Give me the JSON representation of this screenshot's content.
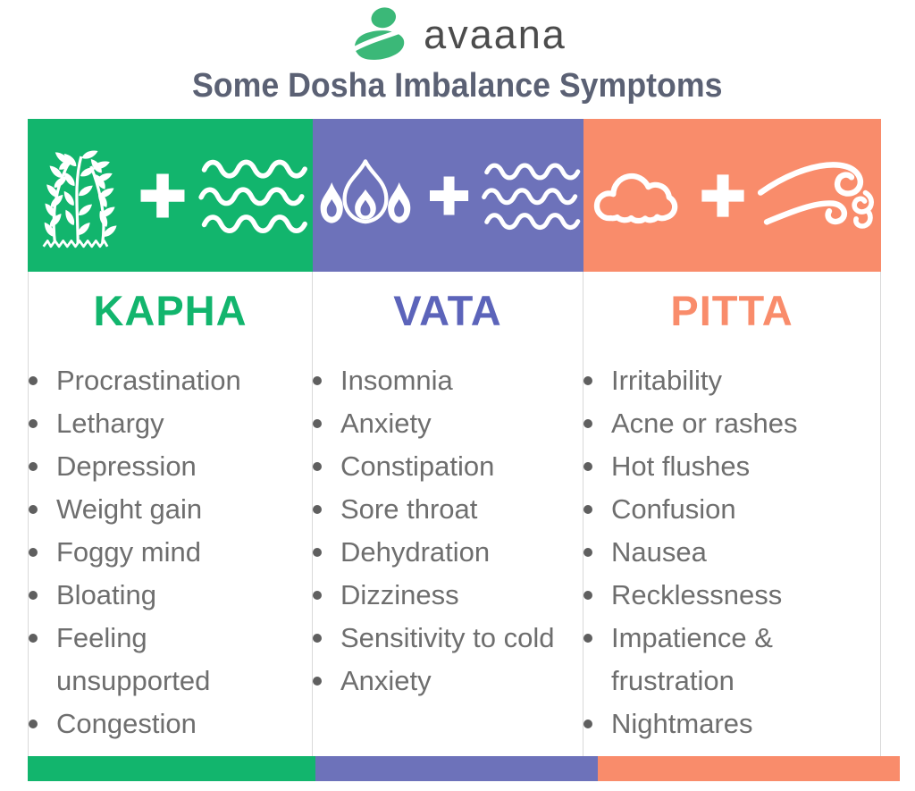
{
  "header": {
    "brand": "avaana",
    "title": "Some Dosha Imbalance Symptoms",
    "logo_icon": "meditating-figure-icon"
  },
  "colors": {
    "kapha_green": "#12b56d",
    "vata_purple": "#6d72ba",
    "vata_title_purple": "#5c64ba",
    "pitta_salmon": "#f98c6b",
    "logo_green": "#3bb878",
    "subtitle_slate": "#5b6174",
    "brand_gray": "#4c4c4c",
    "symptom_text_gray": "#6e6e6e",
    "bullet_gray": "#5f5f5f"
  },
  "columns": [
    {
      "name": "KAPHA",
      "element_icons": [
        "plant-icon",
        "plus-icon",
        "water-waves-icon"
      ],
      "symptoms": [
        "Procrastination",
        "Lethargy",
        "Depression",
        "Weight gain",
        "Foggy mind",
        "Bloating",
        "Feeling unsupported",
        "Congestion"
      ]
    },
    {
      "name": "VATA",
      "element_icons": [
        "fire-icon",
        "plus-icon",
        "water-waves-icon"
      ],
      "symptoms": [
        "Insomnia",
        "Anxiety",
        "Constipation",
        "Sore throat",
        "Dehydration",
        "Dizziness",
        "Sensitivity to cold",
        "Anxiety"
      ]
    },
    {
      "name": "PITTA",
      "element_icons": [
        "cloud-icon",
        "plus-icon",
        "wind-icon"
      ],
      "symptoms": [
        "Irritability",
        "Acne or rashes",
        "Hot flushes",
        "Confusion",
        "Nausea",
        "Recklessness",
        "Impatience & frustration",
        "Nightmares"
      ]
    }
  ]
}
